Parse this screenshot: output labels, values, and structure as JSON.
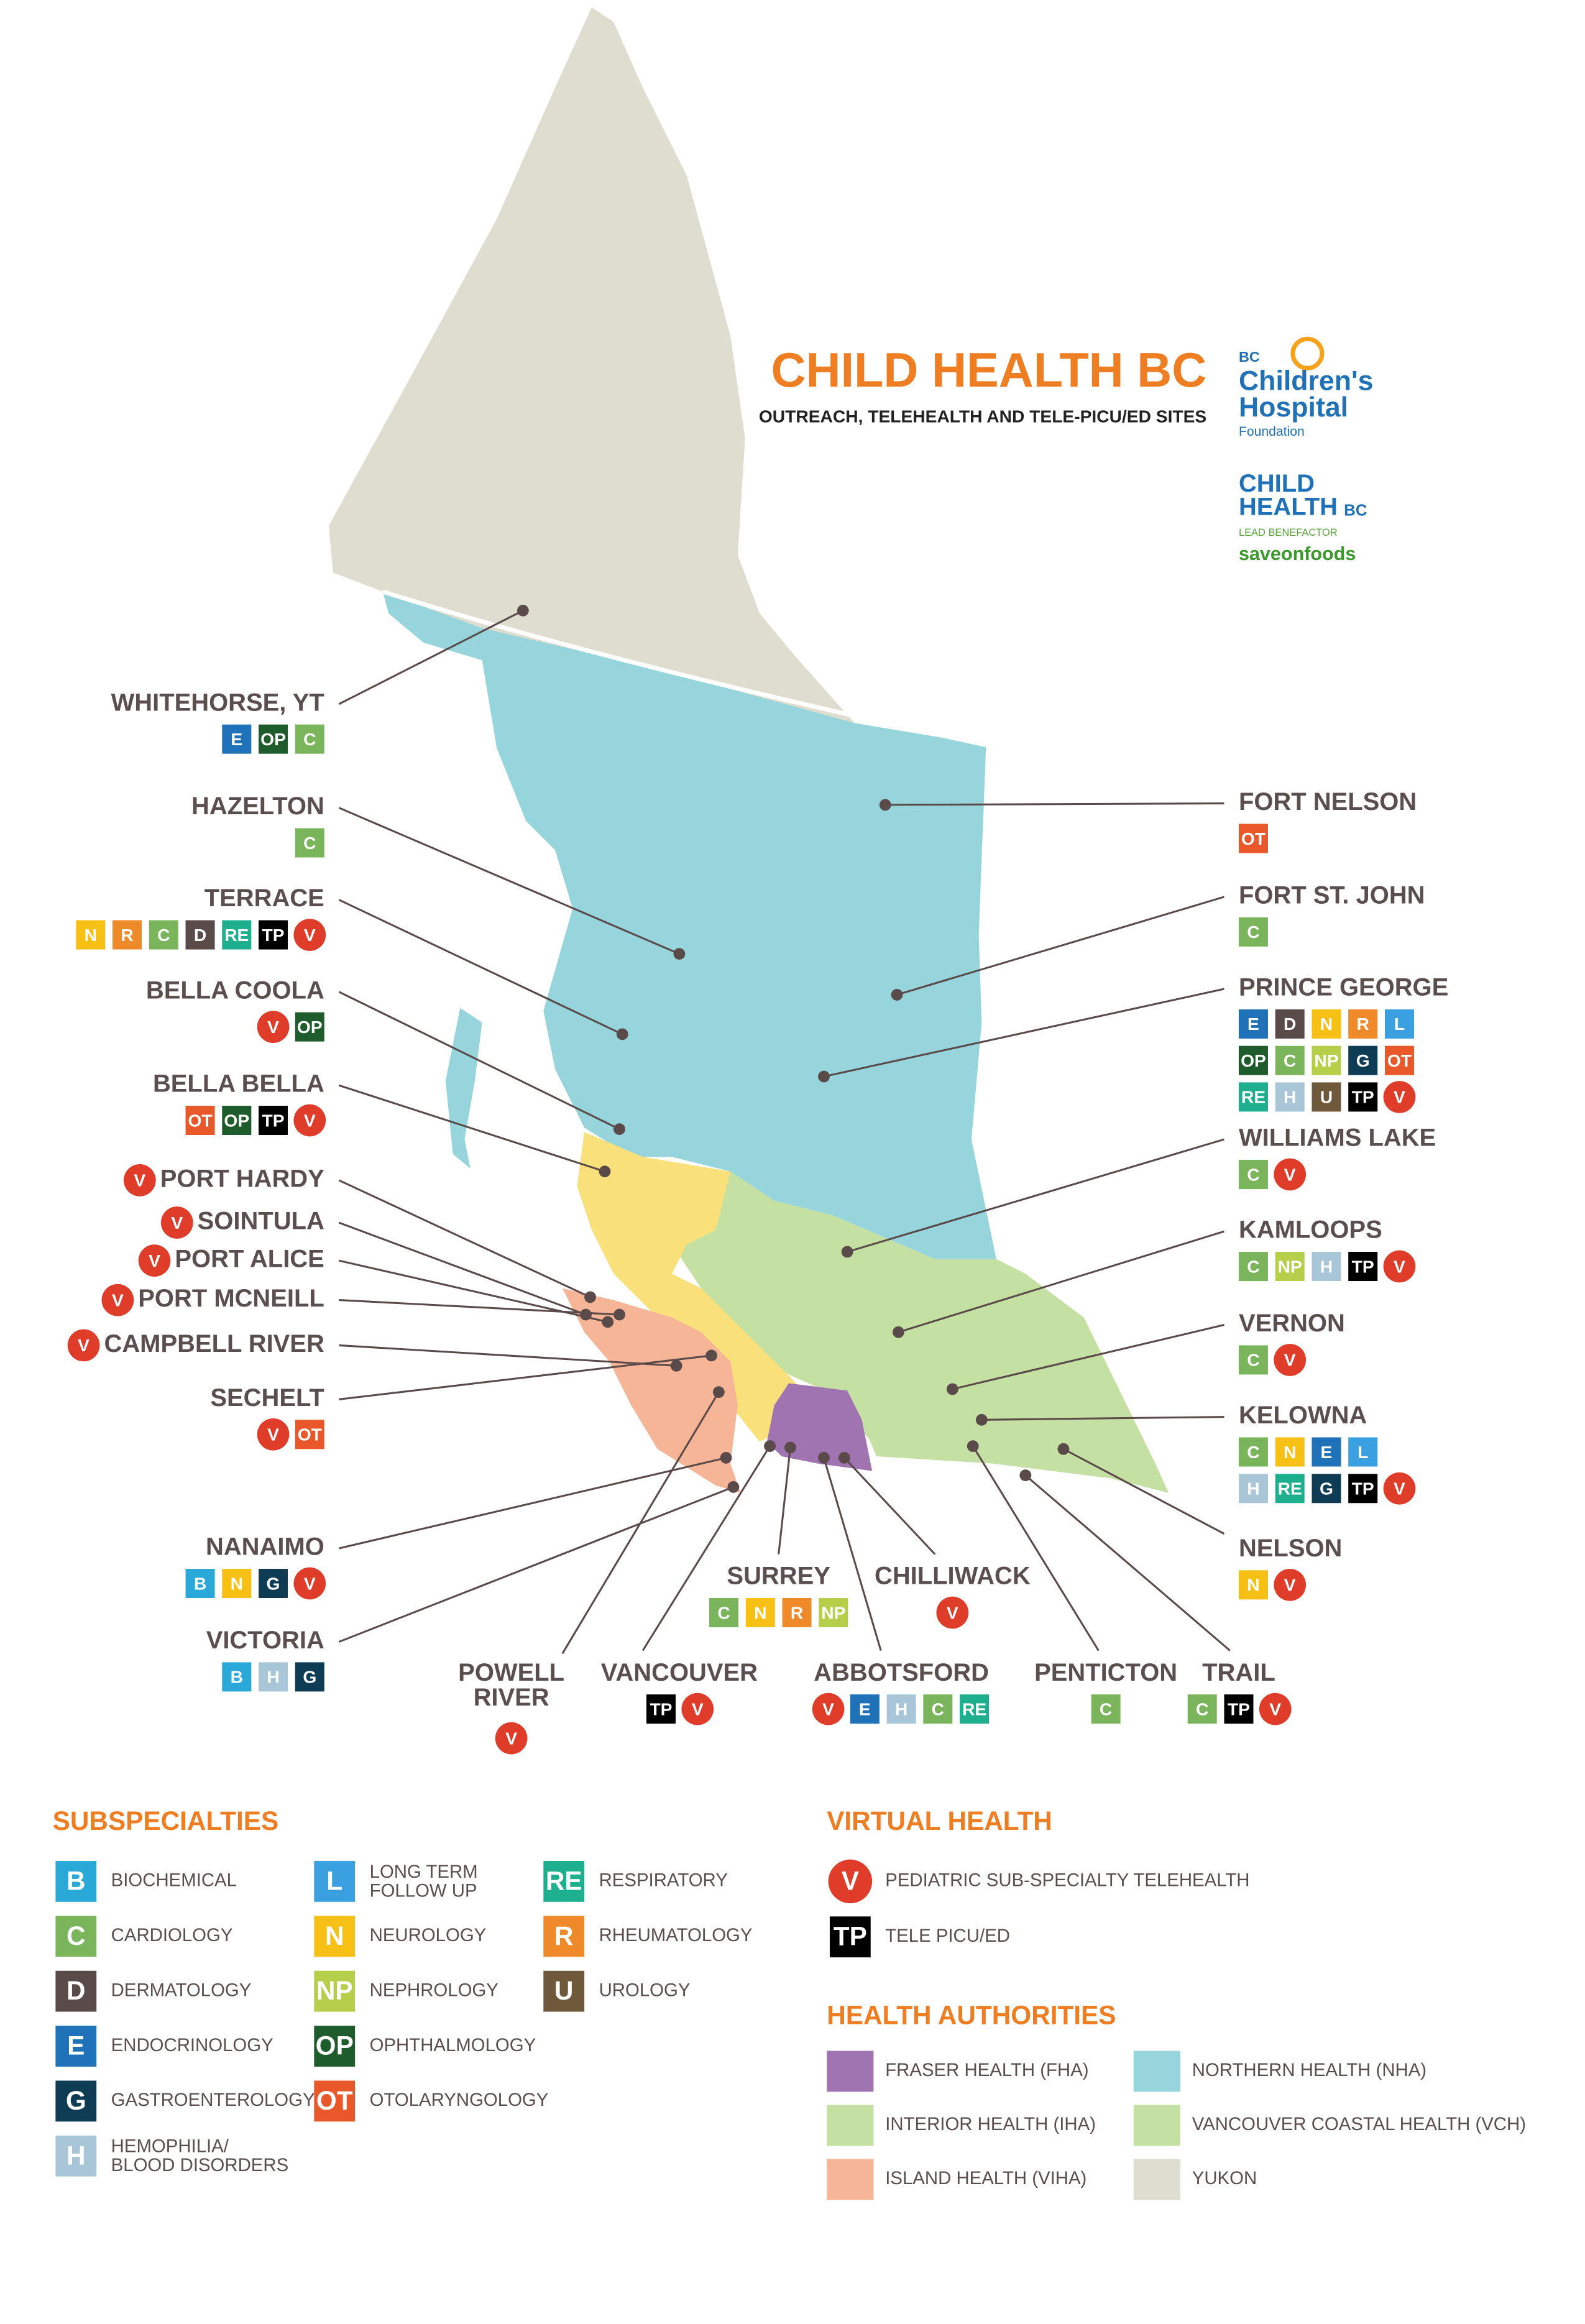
{
  "header": {
    "title": "CHILD HEALTH BC",
    "subtitle": "OUTREACH, TELEHEALTH AND TELE-PICU/ED SITES"
  },
  "logos": {
    "foundation": [
      "BC",
      "Children's",
      "Hospital",
      "Foundation"
    ],
    "child_health": [
      "CHILD",
      "HEALTH",
      "BC"
    ],
    "benefactor": "LEAD BENEFACTOR",
    "sponsor": "saveonfoods"
  },
  "sites": [
    {
      "name": "WHITEHORSE, YT",
      "badges": [
        [
          "E",
          "OP",
          "C"
        ]
      ]
    },
    {
      "name": "HAZELTON",
      "badges": [
        [
          "C"
        ]
      ]
    },
    {
      "name": "TERRACE",
      "badges": [
        [
          "N",
          "R",
          "C",
          "D",
          "RE",
          "TP",
          "V"
        ]
      ]
    },
    {
      "name": "BELLA COOLA",
      "badges": [
        [
          "V",
          "OP"
        ]
      ]
    },
    {
      "name": "BELLA BELLA",
      "badges": [
        [
          "OT",
          "OP",
          "TP",
          "V"
        ]
      ]
    },
    {
      "name": "PORT HARDY",
      "badges": [
        [
          "V"
        ]
      ]
    },
    {
      "name": "SOINTULA",
      "badges": [
        [
          "V"
        ]
      ]
    },
    {
      "name": "PORT ALICE",
      "badges": [
        [
          "V"
        ]
      ]
    },
    {
      "name": "PORT MCNEILL",
      "badges": [
        [
          "V"
        ]
      ]
    },
    {
      "name": "CAMPBELL RIVER",
      "badges": [
        [
          "V"
        ]
      ]
    },
    {
      "name": "SECHELT",
      "badges": [
        [
          "V",
          "OT"
        ]
      ]
    },
    {
      "name": "NANAIMO",
      "badges": [
        [
          "B",
          "N",
          "G",
          "V"
        ]
      ]
    },
    {
      "name": "VICTORIA",
      "badges": [
        [
          "B",
          "H",
          "G"
        ]
      ]
    },
    {
      "name": "FORT NELSON",
      "badges": [
        [
          "OT"
        ]
      ]
    },
    {
      "name": "FORT ST. JOHN",
      "badges": [
        [
          "C"
        ]
      ]
    },
    {
      "name": "PRINCE GEORGE",
      "badges": [
        [
          "E",
          "D",
          "N",
          "R",
          "L"
        ],
        [
          "OP",
          "C",
          "NP",
          "G",
          "OT"
        ],
        [
          "RE",
          "H",
          "U",
          "TP",
          "V"
        ]
      ]
    },
    {
      "name": "WILLIAMS LAKE",
      "badges": [
        [
          "C",
          "V"
        ]
      ]
    },
    {
      "name": "KAMLOOPS",
      "badges": [
        [
          "C",
          "NP",
          "H",
          "TP",
          "V"
        ]
      ]
    },
    {
      "name": "VERNON",
      "badges": [
        [
          "C",
          "V"
        ]
      ]
    },
    {
      "name": "KELOWNA",
      "badges": [
        [
          "C",
          "N",
          "E",
          "L"
        ],
        [
          "H",
          "RE",
          "G",
          "TP",
          "V"
        ]
      ]
    },
    {
      "name": "NELSON",
      "badges": [
        [
          "N",
          "V"
        ]
      ]
    },
    {
      "name": "POWELL\nRIVER",
      "badges": [
        [
          "V"
        ]
      ]
    },
    {
      "name": "VANCOUVER",
      "badges": [
        [
          "TP",
          "V"
        ]
      ]
    },
    {
      "name": "SURREY",
      "badges": [
        [
          "C",
          "N",
          "R",
          "NP"
        ]
      ]
    },
    {
      "name": "CHILLIWACK",
      "badges": [
        [
          "V"
        ]
      ]
    },
    {
      "name": "ABBOTSFORD",
      "badges": [
        [
          "V",
          "E",
          "H",
          "C",
          "RE"
        ]
      ]
    },
    {
      "name": "PENTICTON",
      "badges": [
        [
          "C"
        ]
      ]
    },
    {
      "name": "TRAIL",
      "badges": [
        [
          "C",
          "TP",
          "V"
        ]
      ]
    }
  ],
  "subspecialties": {
    "title": "SUBSPECIALTIES",
    "items": [
      {
        "code": "B",
        "label": "BIOCHEMICAL",
        "color": "#2aa8d8"
      },
      {
        "code": "C",
        "label": "CARDIOLOGY",
        "color": "#7ab55c"
      },
      {
        "code": "D",
        "label": "DERMATOLOGY",
        "color": "#5a4a4a"
      },
      {
        "code": "E",
        "label": "ENDOCRINOLOGY",
        "color": "#1f72b8"
      },
      {
        "code": "G",
        "label": "GASTROENTEROLOGY",
        "color": "#0e3c55"
      },
      {
        "code": "H",
        "label": "HEMOPHILIA/\nBLOOD DISORDERS",
        "color": "#a8c6d8"
      },
      {
        "code": "L",
        "label": "LONG TERM\nFOLLOW UP",
        "color": "#3aa0df"
      },
      {
        "code": "N",
        "label": "NEUROLOGY",
        "color": "#f6c015"
      },
      {
        "code": "NP",
        "label": "NEPHROLOGY",
        "color": "#b5cf4a"
      },
      {
        "code": "OP",
        "label": "OPHTHALMOLOGY",
        "color": "#1f5c2b"
      },
      {
        "code": "OT",
        "label": "OTOLARYNGOLOGY",
        "color": "#e8582a"
      },
      {
        "code": "RE",
        "label": "RESPIRATORY",
        "color": "#1eb08e"
      },
      {
        "code": "R",
        "label": "RHEUMATOLOGY",
        "color": "#ef8a2a"
      },
      {
        "code": "U",
        "label": "UROLOGY",
        "color": "#6e5a3a"
      }
    ]
  },
  "virtual_health": {
    "title": "VIRTUAL HEALTH",
    "items": [
      {
        "code": "V",
        "label": "PEDIATRIC SUB-SPECIALTY TELEHEALTH",
        "color": "#e03c2a"
      },
      {
        "code": "TP",
        "label": "TELE PICU/ED",
        "color": "#000000"
      }
    ]
  },
  "health_authorities": {
    "title": "HEALTH AUTHORITIES",
    "items": [
      {
        "name": "FRASER HEALTH (FHA)",
        "color": "#9f74b0"
      },
      {
        "name": "INTERIOR HEALTH (IHA)",
        "color": "#c5e0a3"
      },
      {
        "name": "ISLAND HEALTH (VIHA)",
        "color": "#f6b596"
      },
      {
        "name": "NORTHERN HEALTH (NHA)",
        "color": "#97d5dc"
      },
      {
        "name": "VANCOUVER COASTAL HEALTH (VCH)",
        "color": "#c5e0a3"
      },
      {
        "name": "YUKON",
        "color": "#deddd0"
      }
    ]
  }
}
